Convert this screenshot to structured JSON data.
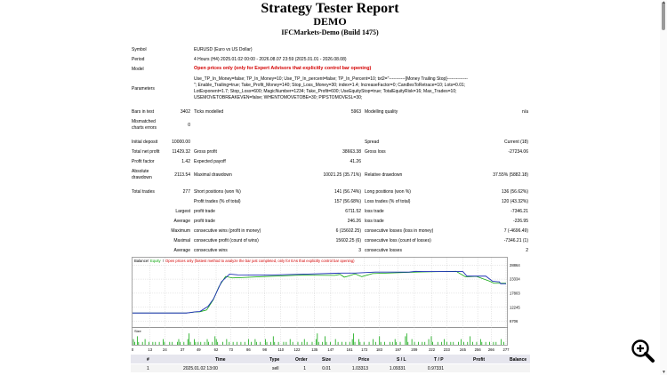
{
  "header": {
    "title": "Strategy Tester Report",
    "subtitle": "DEMO",
    "server": "IFCMarkets-Demo (Build 1475)"
  },
  "settings": {
    "symbol_label": "Symbol",
    "symbol_value": "EURUSD (Euro vs US Dollar)",
    "period_label": "Period",
    "period_value": "4 Hours (H4) 2025.01.02 00:00 - 2026.08.07 23:59 (2025.01.01 - 2026.08.08)",
    "model_label": "Model",
    "model_value": "Open prices only (only for Expert Advisors that explicitly control bar opening)",
    "parameters_label": "Parameters",
    "parameters_lines": [
      "Use_TP_In_Money=false; TP_In_Money=10; Use_TP_In_percent=false; TP_In_Percent=10; txt2=\"-----------[Money Trailing Stop]--------------",
      "\"; Enable_Trailing=true; Take_Profit_Money=140; Stop_Loss_Money=30; index=1.4; IncreaseFactor=0; CandlesToRetrace=10; Lots=0.01;",
      "LotExponent=1.7; Stop_Loss=600; MagicNumber=1234; Take_Profit=600; UseEquityStop=true; TotalEquityRisk=16; Max_Trades=10;",
      "USEMOVETOBREAKEVEN=false; WHENTOMOVETOBE=30; PIPSTOMOVESL=30;"
    ]
  },
  "quality": {
    "bars_label": "Bars in test",
    "bars_value": "3402",
    "ticks_label": "Ticks modelled",
    "ticks_value": "5963",
    "modelling_label": "Modelling quality",
    "modelling_value": "n/a",
    "mismatch_label_1": "Mismatched",
    "mismatch_label_2": "charts errors",
    "mismatch_value": "0"
  },
  "stats": {
    "initial_deposit_label": "Initial deposit",
    "initial_deposit_value": "10000.00",
    "spread_label": "Spread",
    "spread_value": "Current (18)",
    "net_profit_label": "Total net profit",
    "net_profit_value": "11429.32",
    "gross_profit_label": "Gross profit",
    "gross_profit_value": "38663.38",
    "gross_loss_label": "Gross loss",
    "gross_loss_value": "-27234.06",
    "profit_factor_label": "Profit factor",
    "profit_factor_value": "1.42",
    "expected_payoff_label": "Expected payoff",
    "expected_payoff_value": "41.26",
    "abs_dd_label_1": "Absolute",
    "abs_dd_label_2": "drawdown",
    "abs_dd_value": "2113.54",
    "max_dd_label": "Maximal drawdown",
    "max_dd_value": "10021.25 (35.71%)",
    "rel_dd_label": "Relative drawdown",
    "rel_dd_value": "37.55% (5882.18)",
    "total_trades_label": "Total trades",
    "total_trades_value": "277",
    "short_label": "Short positions (won %)",
    "short_value": "141 (56.74%)",
    "long_label": "Long positions (won %)",
    "long_value": "136 (56.62%)",
    "profit_trades_label": "Profit trades (% of total)",
    "profit_trades_value": "157 (56.68%)",
    "loss_trades_label": "Loss trades (% of total)",
    "loss_trades_value": "120 (43.32%)",
    "largest_label": "Largest",
    "largest_profit_label": "profit trade",
    "largest_profit_value": "6711.52",
    "largest_loss_label": "loss trade",
    "largest_loss_value": "-7346.21",
    "average_label": "Average",
    "avg_profit_label": "profit trade",
    "avg_profit_value": "246.26",
    "avg_loss_label": "loss trade",
    "avg_loss_value": "-226.95",
    "maximum_label": "Maximum",
    "max_cons_wins_label": "consecutive wins (profit in money)",
    "max_cons_wins_value": "6 (15602.25)",
    "max_cons_losses_label": "consecutive losses (loss in money)",
    "max_cons_losses_value": "7 (-4696.49)",
    "maximal_label": "Maximal",
    "maximal_profit_label": "consecutive profit (count of wins)",
    "maximal_profit_value": "15602.25 (6)",
    "maximal_loss_label": "consecutive loss (count of losses)",
    "maximal_loss_value": "-7346.21 (1)",
    "average2_label": "Average",
    "avg_cons_wins_label": "consecutive wins",
    "avg_cons_wins_value": "3",
    "avg_cons_losses_label": "consecutive losses",
    "avg_cons_losses_value": "2"
  },
  "chart_data": {
    "type": "line",
    "legend_balance": "Balance",
    "legend_equity": "Equity",
    "legend_note": "Open prices only (fastest method to analyze the bar just completed, only for EAs that explicitly control bar opening)",
    "size_label": "Size",
    "series_colors": {
      "balance": "#1c2fb5",
      "equity": "#11a811",
      "size": "#11a811"
    },
    "y_ticks": [
      "28864",
      "23334",
      "17803",
      "12245",
      "6706"
    ],
    "x_ticks": [
      "0",
      "13",
      "24",
      "37",
      "49",
      "62",
      "73",
      "86",
      "98",
      "110",
      "122",
      "135",
      "147",
      "161",
      "172",
      "183",
      "197",
      "209",
      "222",
      "233",
      "245",
      "256",
      "266",
      "277"
    ],
    "balance": [
      [
        0,
        10000
      ],
      [
        40,
        10000
      ],
      [
        47,
        10500
      ],
      [
        50,
        10600
      ],
      [
        56,
        12600
      ],
      [
        60,
        15500
      ],
      [
        66,
        22300
      ],
      [
        72,
        25300
      ],
      [
        78,
        25000
      ],
      [
        100,
        24900
      ],
      [
        130,
        25300
      ],
      [
        155,
        25700
      ],
      [
        165,
        25700
      ],
      [
        180,
        26100
      ],
      [
        205,
        26100
      ],
      [
        210,
        26400
      ],
      [
        215,
        26300
      ],
      [
        245,
        26300
      ],
      [
        248,
        24500
      ],
      [
        262,
        24500
      ],
      [
        267,
        22500
      ],
      [
        271,
        22300
      ],
      [
        272,
        22300
      ],
      [
        273,
        21500
      ],
      [
        277,
        21500
      ]
    ],
    "equity": [
      [
        0,
        10000
      ],
      [
        40,
        10000
      ],
      [
        46,
        10400
      ],
      [
        50,
        10500
      ],
      [
        55,
        11200
      ],
      [
        60,
        15300
      ],
      [
        64,
        20300
      ],
      [
        69,
        24400
      ],
      [
        74,
        23800
      ],
      [
        96,
        24300
      ],
      [
        124,
        24900
      ],
      [
        150,
        24800
      ],
      [
        154,
        25200
      ],
      [
        157,
        24100
      ],
      [
        160,
        24500
      ],
      [
        165,
        25400
      ],
      [
        170,
        24300
      ],
      [
        178,
        25500
      ],
      [
        200,
        25900
      ],
      [
        212,
        26100
      ],
      [
        240,
        26400
      ],
      [
        247,
        24200
      ],
      [
        255,
        24400
      ],
      [
        265,
        22500
      ],
      [
        268,
        21700
      ],
      [
        277,
        21700
      ]
    ],
    "sizes": [
      2,
      1,
      0,
      3,
      1,
      0,
      0,
      1,
      0,
      2,
      0,
      0,
      1,
      0,
      0,
      1,
      0,
      1,
      0,
      0,
      1,
      0,
      0,
      2,
      1,
      0,
      0,
      0,
      1,
      0,
      1,
      0,
      0,
      0,
      1,
      2,
      1,
      0,
      0,
      1,
      0,
      0,
      2,
      4,
      1,
      0,
      0,
      2,
      1,
      0,
      1,
      0,
      1,
      0,
      0,
      1,
      0,
      2,
      1,
      0,
      0,
      1,
      0,
      3,
      2,
      1,
      0,
      0,
      0,
      1,
      0,
      0,
      2,
      0,
      1,
      0,
      0,
      1,
      0,
      0,
      1,
      0,
      0,
      1,
      0,
      0,
      1,
      0,
      0,
      2,
      0,
      1,
      0,
      0,
      2,
      1,
      0,
      0,
      1,
      0,
      0,
      0,
      2,
      1,
      0,
      0,
      1,
      0,
      3,
      1,
      0,
      0,
      1,
      0,
      0,
      0,
      1,
      0,
      1,
      0,
      0,
      2,
      0,
      1,
      0,
      0,
      0,
      1,
      0,
      0,
      1,
      0,
      2,
      0,
      1,
      0,
      0,
      0,
      1,
      0,
      0,
      2,
      4,
      1,
      0,
      0,
      1,
      0,
      3,
      1,
      0,
      0,
      1,
      0,
      0,
      0,
      2,
      0,
      1,
      0,
      0,
      1,
      0,
      0,
      1,
      0,
      0,
      1,
      0,
      2,
      4,
      1,
      0,
      0,
      2,
      1,
      0,
      0,
      1,
      0,
      0,
      0,
      1,
      0,
      0,
      2,
      0,
      1,
      0,
      0,
      3,
      1,
      0,
      0,
      1,
      0,
      0,
      0,
      1,
      0,
      1,
      0,
      2,
      1,
      0,
      0,
      1,
      0,
      0,
      0,
      3,
      4,
      1,
      0,
      0,
      2,
      0,
      1,
      0,
      0,
      1,
      0,
      0,
      1,
      0,
      1,
      0,
      0,
      2,
      0,
      3,
      1,
      0,
      0,
      0,
      1,
      0,
      0,
      1,
      0,
      2,
      0,
      1,
      0,
      0,
      1,
      0,
      1,
      0,
      0,
      0,
      1,
      0,
      2,
      0,
      1,
      0,
      0,
      1,
      0,
      3,
      0,
      1,
      0,
      0,
      1,
      0,
      0,
      2,
      1,
      0,
      0,
      1,
      0,
      0,
      1,
      0,
      0,
      1,
      0,
      1,
      0,
      0,
      0,
      2,
      0,
      1
    ]
  },
  "table": {
    "headers": [
      "#",
      "Time",
      "Type",
      "Order",
      "Size",
      "Price",
      "S / L",
      "T / P",
      "Profit",
      "Balance"
    ],
    "row": [
      "1",
      "2025.01.02 13:00",
      "sell",
      "1",
      "0.01",
      "1.03313",
      "1.09331",
      "0.97331",
      "",
      ""
    ]
  },
  "ui": {
    "zoom_icon": "zoom-in-icon",
    "scroll_up": "▲",
    "scroll_down": "▼"
  }
}
